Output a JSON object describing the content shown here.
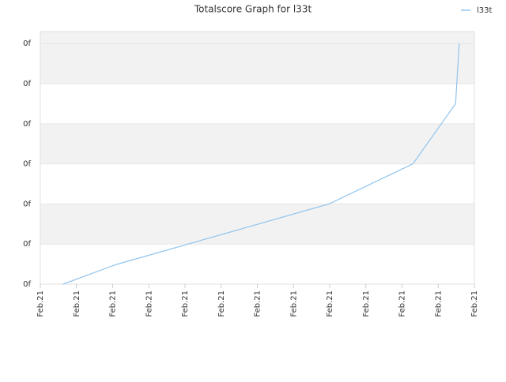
{
  "chart_data": {
    "type": "line",
    "title": "Totalscore Graph for l33t",
    "series": [
      {
        "name": "l33t",
        "color": "#90c4ee",
        "x": [
          0.63,
          2.1,
          7.98,
          10.3,
          11.48,
          11.58
        ],
        "values": [
          0,
          0.49,
          2.0,
          3.0,
          4.5,
          6.0
        ]
      }
    ],
    "xlim": [
      0,
      12
    ],
    "xticks": [
      {
        "value": 0,
        "label": "Feb.21"
      },
      {
        "value": 1,
        "label": "Feb.21"
      },
      {
        "value": 2,
        "label": "Feb.21"
      },
      {
        "value": 3,
        "label": "Feb.21"
      },
      {
        "value": 4,
        "label": "Feb.21"
      },
      {
        "value": 5,
        "label": "Feb.21"
      },
      {
        "value": 6,
        "label": "Feb.21"
      },
      {
        "value": 7,
        "label": "Feb.21"
      },
      {
        "value": 8,
        "label": "Feb.21"
      },
      {
        "value": 9,
        "label": "Feb.21"
      },
      {
        "value": 10,
        "label": "Feb.21"
      },
      {
        "value": 11,
        "label": "Feb.21"
      },
      {
        "value": 12,
        "label": "Feb.21"
      }
    ],
    "ylim": [
      0,
      6.3
    ],
    "yticks": [
      {
        "value": 0,
        "label": "0f"
      },
      {
        "value": 1,
        "label": "0f"
      },
      {
        "value": 2,
        "label": "0f"
      },
      {
        "value": 3,
        "label": "0f"
      },
      {
        "value": 4,
        "label": "0f"
      },
      {
        "value": 5,
        "label": "0f"
      },
      {
        "value": 6,
        "label": "0f"
      }
    ],
    "grid": true,
    "legend": "top-right"
  }
}
